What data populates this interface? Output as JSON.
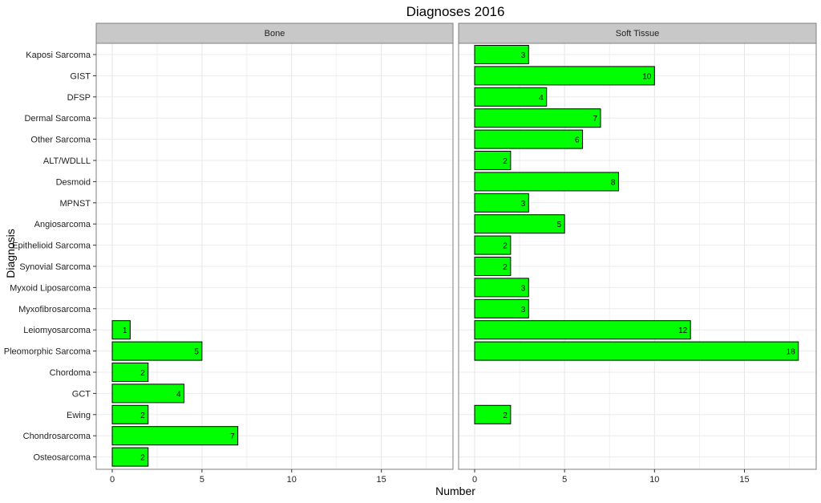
{
  "chart_data": {
    "type": "bar",
    "orientation": "horizontal",
    "title": "Diagnoses 2016",
    "xlabel": "Number",
    "ylabel": "Diagnosis",
    "xlim": [
      0,
      18.5
    ],
    "xticks": [
      0,
      5,
      10,
      15
    ],
    "grid": true,
    "bar_color": "#00ff00",
    "bar_edge_color": "#000000",
    "strip_color": "#c8c8c8",
    "categories": [
      "Kaposi Sarcoma",
      "GIST",
      "DFSP",
      "Dermal Sarcoma",
      "Other Sarcoma",
      "ALT/WDLLL",
      "Desmoid",
      "MPNST",
      "Angiosarcoma",
      "Epithelioid Sarcoma",
      "Synovial Sarcoma",
      "Myxoid Liposarcoma",
      "Myxofibrosarcoma",
      "Leiomyosarcoma",
      "Pleomorphic Sarcoma",
      "Chordoma",
      "GCT",
      "Ewing",
      "Chondrosarcoma",
      "Osteosarcoma"
    ],
    "panels": [
      {
        "name": "Bone",
        "values": [
          null,
          null,
          null,
          null,
          null,
          null,
          null,
          null,
          null,
          null,
          null,
          null,
          null,
          1,
          5,
          2,
          4,
          2,
          7,
          2
        ]
      },
      {
        "name": "Soft Tissue",
        "values": [
          3,
          10,
          4,
          7,
          6,
          2,
          8,
          3,
          5,
          2,
          2,
          3,
          3,
          12,
          18,
          null,
          null,
          2,
          null,
          null
        ]
      }
    ]
  }
}
